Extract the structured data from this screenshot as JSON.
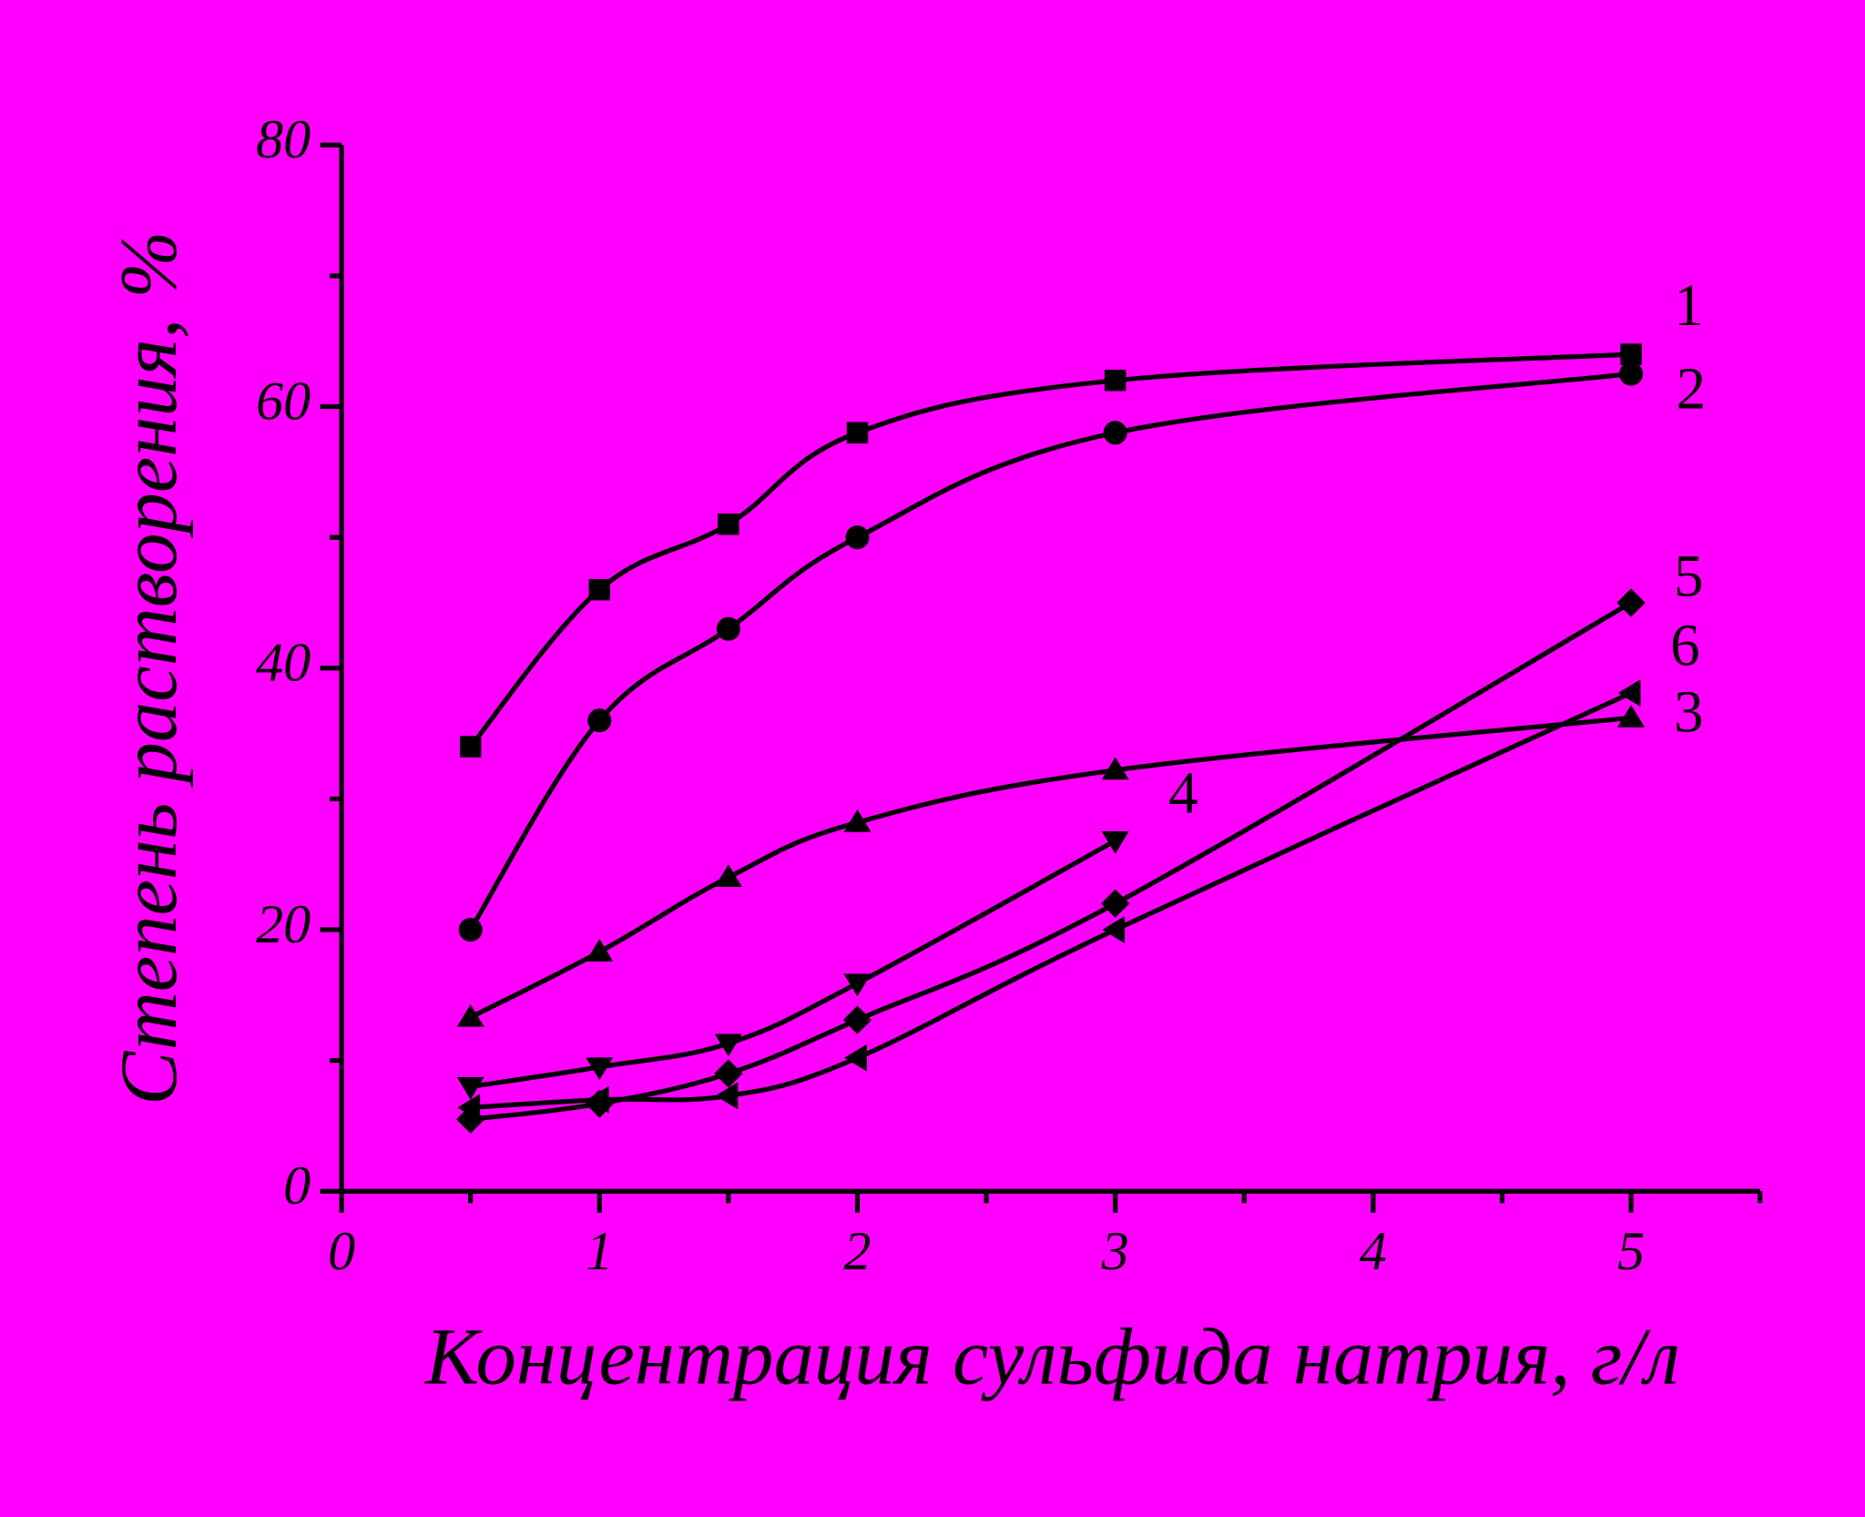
{
  "chart_data": {
    "type": "line",
    "x_label": "Концентрация сульфида натрия, г/л",
    "y_label": "Степень растворения, %",
    "background": "#ff00ff",
    "xlim": [
      0,
      5.5
    ],
    "xticks": [
      0,
      1,
      2,
      3,
      4,
      5
    ],
    "ylim": [
      0,
      80
    ],
    "yticks": [
      0,
      20,
      40,
      60,
      80
    ],
    "grid": false,
    "series": [
      {
        "name": "1",
        "marker": "square",
        "color": "#000000",
        "x": [
          0.5,
          1,
          1.5,
          2,
          3,
          5
        ],
        "values": [
          34,
          46,
          51,
          58,
          62,
          64
        ]
      },
      {
        "name": "2",
        "marker": "circle",
        "color": "#000000",
        "x": [
          0.5,
          1,
          1.5,
          2,
          3,
          5
        ],
        "values": [
          20,
          36,
          43,
          50,
          58,
          62.5
        ]
      },
      {
        "name": "3",
        "marker": "triangle-up",
        "color": "#000000",
        "x": [
          0.5,
          1,
          1.5,
          2,
          3,
          5
        ],
        "values": [
          13.3,
          18.3,
          24,
          28.2,
          32.2,
          36.2
        ]
      },
      {
        "name": "4",
        "marker": "triangle-down",
        "color": "#000000",
        "x": [
          0.5,
          1,
          1.5,
          2,
          3
        ],
        "values": [
          8,
          9.5,
          11.3,
          15.9,
          26.8
        ]
      },
      {
        "name": "5",
        "marker": "diamond",
        "color": "#000000",
        "x": [
          0.5,
          1,
          1.5,
          2,
          3,
          5
        ],
        "values": [
          5.5,
          6.7,
          9,
          13.1,
          22,
          45
        ]
      },
      {
        "name": "6",
        "marker": "triangle-left",
        "color": "#000000",
        "x": [
          0.5,
          1,
          1.5,
          2,
          3,
          5
        ],
        "values": [
          6.4,
          7,
          7.3,
          10.2,
          20,
          38.1
        ]
      }
    ]
  }
}
